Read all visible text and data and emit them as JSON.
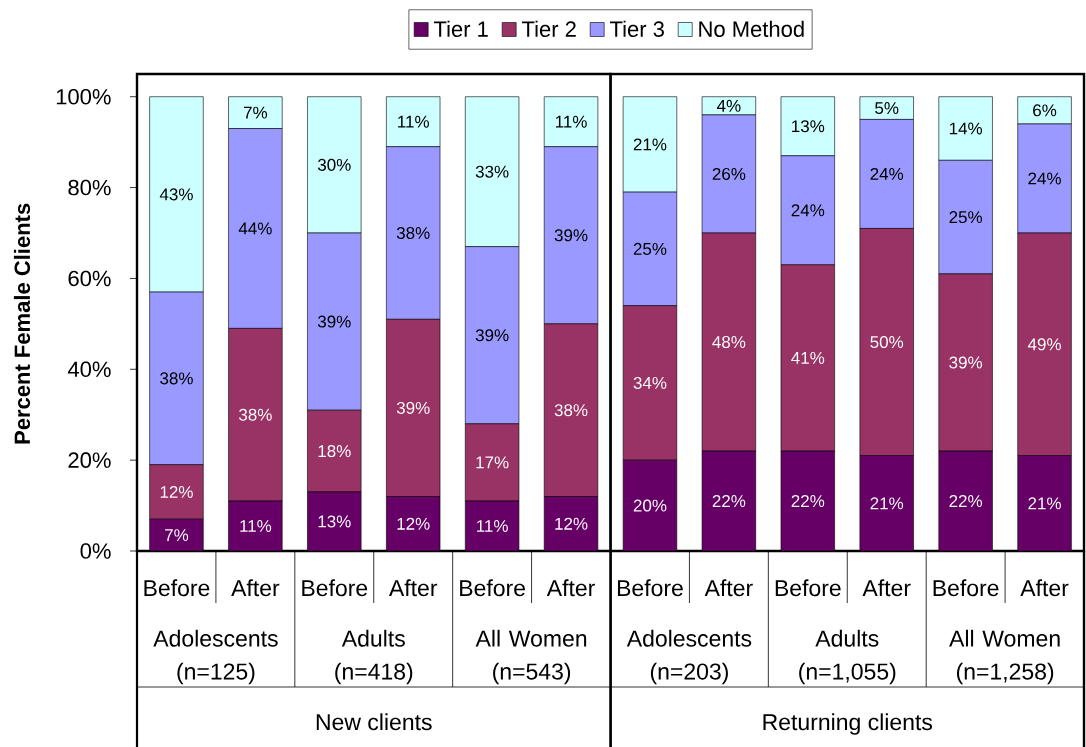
{
  "chart_data": [
    {
      "type": "bar",
      "stacked": true,
      "ylabel": "Percent Female Clients",
      "xlabel": "New clients",
      "categories": [
        "Before",
        "After",
        "Before",
        "After",
        "Before",
        "After"
      ],
      "annotations": [
        "Adolescents (n=125)",
        "Adults (n=418)",
        "All Women (n=543)"
      ],
      "series": [
        {
          "name": "Tier 1",
          "color": "#660066",
          "values": [
            7,
            11,
            13,
            12,
            11,
            12
          ],
          "value_labels": [
            "7%",
            "11%",
            "13%",
            "12%",
            "11%",
            "12%"
          ]
        },
        {
          "name": "Tier 2",
          "color": "#993366",
          "values": [
            12,
            38,
            18,
            39,
            17,
            38
          ],
          "value_labels": [
            "12%",
            "38%",
            "18%",
            "39%",
            "17%",
            "38%"
          ]
        },
        {
          "name": "Tier 3",
          "color": "#9999ff",
          "values": [
            38,
            44,
            39,
            38,
            39,
            39
          ],
          "value_labels": [
            "38%",
            "44%",
            "39%",
            "38%",
            "39%",
            "39%"
          ]
        },
        {
          "name": "No Method",
          "color": "#ccffff",
          "values": [
            43,
            7,
            30,
            11,
            33,
            11
          ],
          "value_labels": [
            "43%",
            "7%",
            "30%",
            "11%",
            "33%",
            "11%"
          ]
        }
      ],
      "ylim": [
        0,
        105
      ],
      "yticks": [
        {
          "value": 0,
          "label": "0%"
        },
        {
          "value": 20,
          "label": "20%"
        },
        {
          "value": 40,
          "label": "40%"
        },
        {
          "value": 60,
          "label": "60%"
        },
        {
          "value": 80,
          "label": "80%"
        },
        {
          "value": 100,
          "label": "100%"
        }
      ],
      "legend": "top"
    },
    {
      "type": "bar",
      "stacked": true,
      "xlabel": "Returning clients",
      "categories": [
        "Before",
        "After",
        "Before",
        "After",
        "Before",
        "After"
      ],
      "annotations": [
        "Adolescents (n=203)",
        "Adults (n=1,055)",
        "All Women (n=1,258)"
      ],
      "series": [
        {
          "color": "#660066",
          "values": [
            20,
            22,
            22,
            21,
            22,
            21
          ],
          "value_labels": [
            "20%",
            "22%",
            "22%",
            "21%",
            "22%",
            "21%"
          ]
        },
        {
          "color": "#993366",
          "values": [
            34,
            48,
            41,
            50,
            39,
            49
          ],
          "value_labels": [
            "34%",
            "48%",
            "41%",
            "50%",
            "39%",
            "49%"
          ]
        },
        {
          "color": "#9999ff",
          "values": [
            25,
            26,
            24,
            24,
            25,
            24
          ],
          "value_labels": [
            "25%",
            "26%",
            "24%",
            "24%",
            "25%",
            "24%"
          ]
        },
        {
          "color": "#ccffff",
          "values": [
            21,
            4,
            13,
            5,
            14,
            6
          ],
          "value_labels": [
            "21%",
            "4%",
            "13%",
            "5%",
            "14%",
            "6%"
          ]
        }
      ],
      "ylim": [
        0,
        105
      ],
      "tick_labels": "x"
    }
  ]
}
